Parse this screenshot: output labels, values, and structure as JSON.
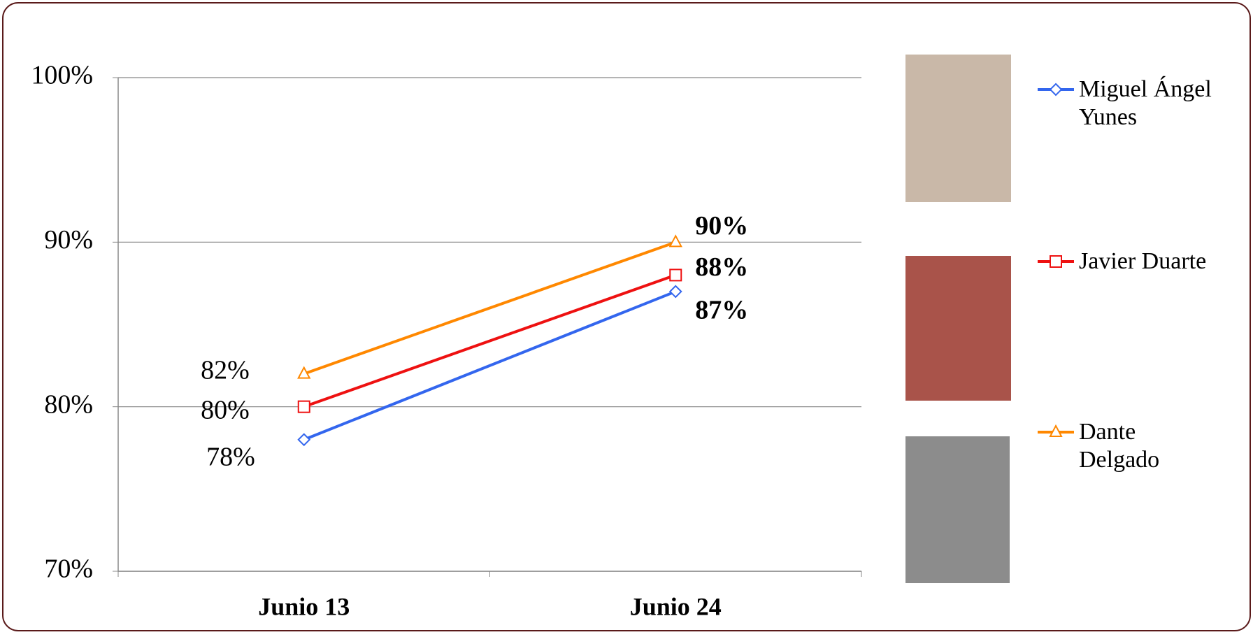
{
  "chart_data": {
    "type": "line",
    "categories": [
      "Junio 13",
      "Junio 24"
    ],
    "ylim": [
      70,
      100
    ],
    "yticks": [
      {
        "value": 70,
        "label": "70%"
      },
      {
        "value": 80,
        "label": "80%"
      },
      {
        "value": 90,
        "label": "90%"
      },
      {
        "value": 100,
        "label": "100%"
      }
    ],
    "grid": true,
    "legend": "right",
    "series": [
      {
        "name": "Miguel Ángel Yunes",
        "color": "#3366ee",
        "marker": "diamond",
        "values": [
          78,
          87
        ],
        "value_labels": [
          "78%",
          "87%"
        ]
      },
      {
        "name": "Javier Duarte",
        "color": "#ee1111",
        "marker": "square",
        "values": [
          80,
          88
        ],
        "value_labels": [
          "80%",
          "88%"
        ]
      },
      {
        "name": "Dante Delgado",
        "color": "#ff8800",
        "marker": "triangle",
        "values": [
          82,
          90
        ],
        "value_labels": [
          "82%",
          "90%"
        ]
      }
    ]
  }
}
